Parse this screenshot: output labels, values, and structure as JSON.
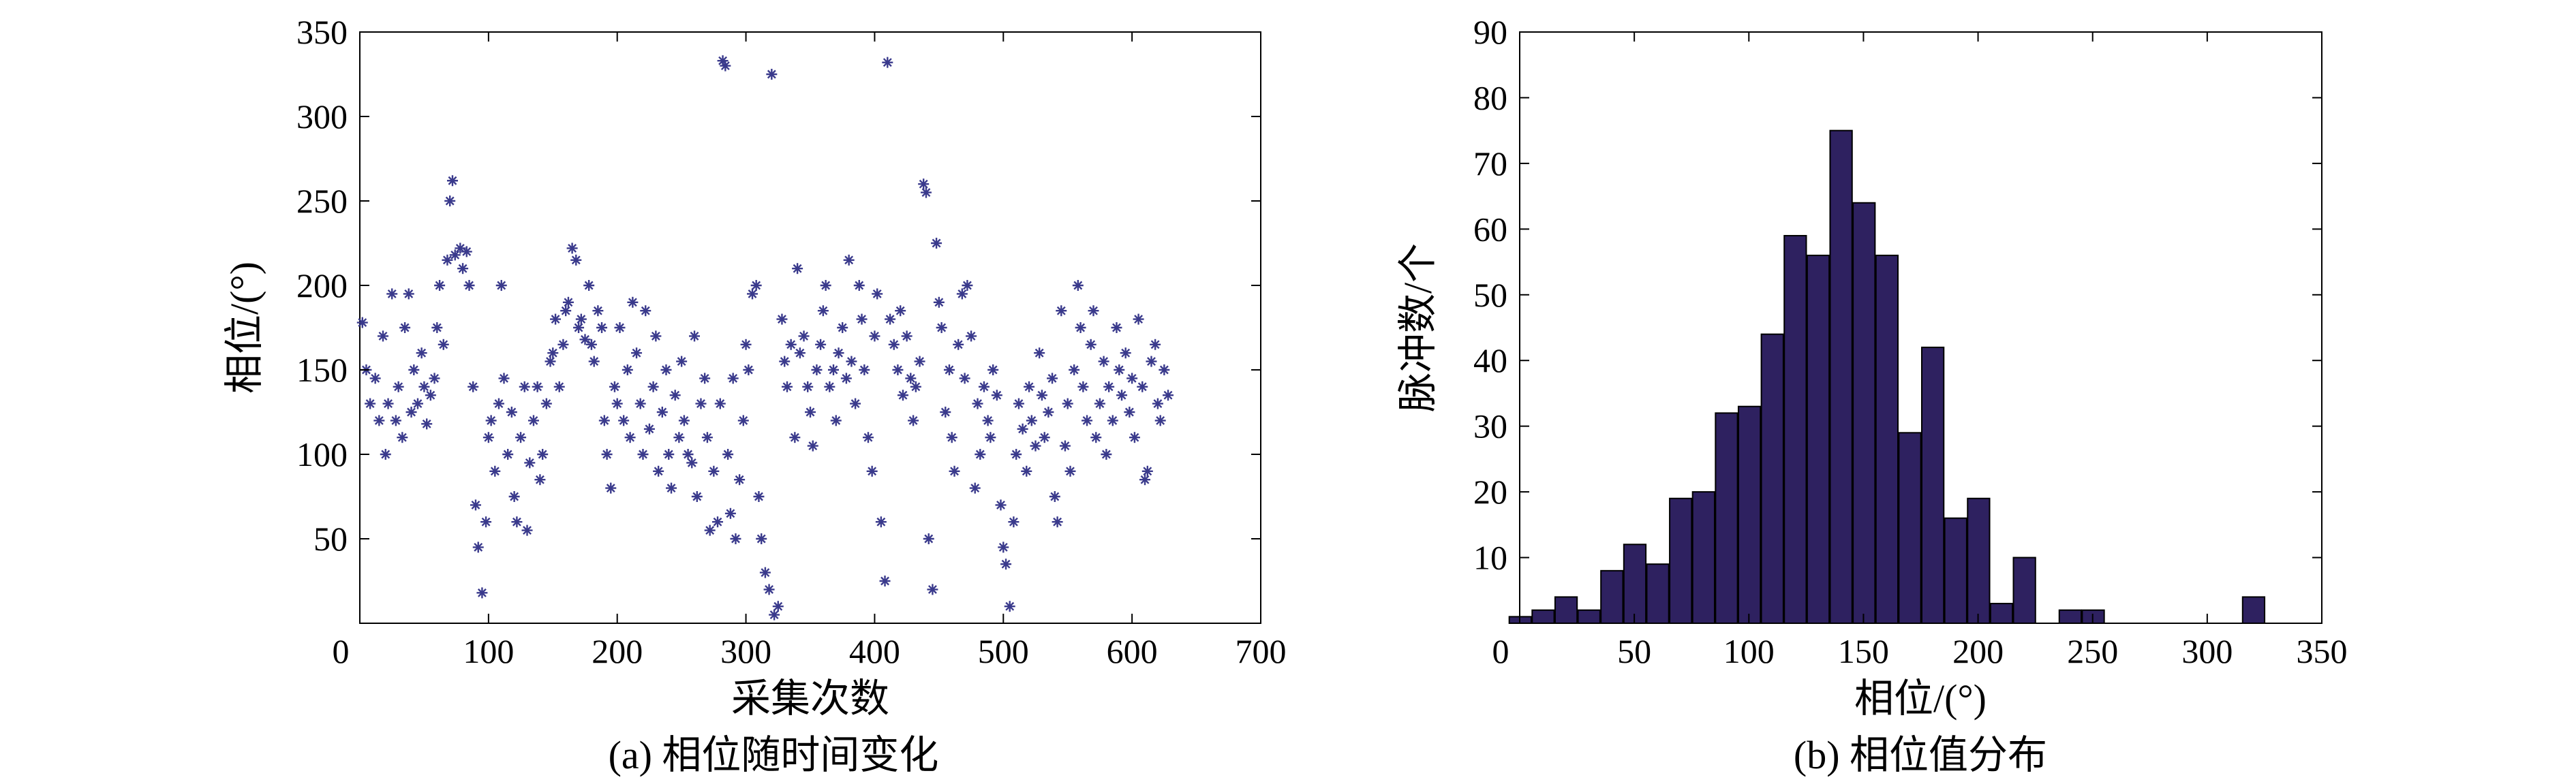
{
  "chart_data": [
    {
      "type": "scatter",
      "title": "",
      "xlabel": "采集次数",
      "ylabel": "相位/(°)",
      "caption": "(a) 相位随时间变化",
      "xlim": [
        0,
        700
      ],
      "ylim": [
        0,
        350
      ],
      "xticks": [
        "0",
        "100",
        "200",
        "300",
        "400",
        "500",
        "600",
        "700"
      ],
      "yticks": [
        "50",
        "100",
        "150",
        "200",
        "250",
        "300",
        "350"
      ],
      "marker": "asterisk",
      "color": "#3a3a8c",
      "points": [
        [
          2,
          178
        ],
        [
          5,
          150
        ],
        [
          8,
          130
        ],
        [
          12,
          145
        ],
        [
          15,
          120
        ],
        [
          18,
          170
        ],
        [
          20,
          100
        ],
        [
          22,
          130
        ],
        [
          25,
          195
        ],
        [
          28,
          120
        ],
        [
          30,
          140
        ],
        [
          33,
          110
        ],
        [
          35,
          175
        ],
        [
          38,
          195
        ],
        [
          40,
          125
        ],
        [
          42,
          150
        ],
        [
          45,
          130
        ],
        [
          48,
          160
        ],
        [
          50,
          140
        ],
        [
          52,
          118
        ],
        [
          55,
          135
        ],
        [
          58,
          145
        ],
        [
          60,
          175
        ],
        [
          62,
          200
        ],
        [
          65,
          165
        ],
        [
          68,
          215
        ],
        [
          70,
          250
        ],
        [
          72,
          262
        ],
        [
          74,
          218
        ],
        [
          78,
          222
        ],
        [
          80,
          210
        ],
        [
          83,
          220
        ],
        [
          85,
          200
        ],
        [
          88,
          140
        ],
        [
          90,
          70
        ],
        [
          92,
          45
        ],
        [
          95,
          18
        ],
        [
          98,
          60
        ],
        [
          100,
          110
        ],
        [
          102,
          120
        ],
        [
          105,
          90
        ],
        [
          108,
          130
        ],
        [
          110,
          200
        ],
        [
          112,
          145
        ],
        [
          115,
          100
        ],
        [
          118,
          125
        ],
        [
          120,
          75
        ],
        [
          122,
          60
        ],
        [
          125,
          110
        ],
        [
          128,
          140
        ],
        [
          130,
          55
        ],
        [
          132,
          95
        ],
        [
          135,
          120
        ],
        [
          138,
          140
        ],
        [
          140,
          85
        ],
        [
          142,
          100
        ],
        [
          145,
          130
        ],
        [
          148,
          155
        ],
        [
          150,
          160
        ],
        [
          152,
          180
        ],
        [
          155,
          140
        ],
        [
          158,
          165
        ],
        [
          160,
          185
        ],
        [
          162,
          190
        ],
        [
          165,
          222
        ],
        [
          168,
          215
        ],
        [
          170,
          175
        ],
        [
          172,
          180
        ],
        [
          175,
          168
        ],
        [
          178,
          200
        ],
        [
          180,
          165
        ],
        [
          182,
          155
        ],
        [
          185,
          185
        ],
        [
          188,
          175
        ],
        [
          190,
          120
        ],
        [
          192,
          100
        ],
        [
          195,
          80
        ],
        [
          198,
          140
        ],
        [
          200,
          130
        ],
        [
          202,
          175
        ],
        [
          205,
          120
        ],
        [
          208,
          150
        ],
        [
          210,
          110
        ],
        [
          212,
          190
        ],
        [
          215,
          160
        ],
        [
          218,
          130
        ],
        [
          220,
          100
        ],
        [
          222,
          185
        ],
        [
          225,
          115
        ],
        [
          228,
          140
        ],
        [
          230,
          170
        ],
        [
          232,
          90
        ],
        [
          235,
          125
        ],
        [
          238,
          150
        ],
        [
          240,
          100
        ],
        [
          242,
          80
        ],
        [
          245,
          135
        ],
        [
          248,
          110
        ],
        [
          250,
          155
        ],
        [
          252,
          120
        ],
        [
          255,
          100
        ],
        [
          258,
          95
        ],
        [
          260,
          170
        ],
        [
          262,
          75
        ],
        [
          265,
          130
        ],
        [
          268,
          145
        ],
        [
          270,
          110
        ],
        [
          272,
          55
        ],
        [
          275,
          90
        ],
        [
          278,
          60
        ],
        [
          280,
          130
        ],
        [
          282,
          333
        ],
        [
          284,
          330
        ],
        [
          286,
          100
        ],
        [
          288,
          65
        ],
        [
          290,
          145
        ],
        [
          292,
          50
        ],
        [
          295,
          85
        ],
        [
          298,
          120
        ],
        [
          300,
          165
        ],
        [
          302,
          150
        ],
        [
          305,
          195
        ],
        [
          308,
          200
        ],
        [
          310,
          75
        ],
        [
          312,
          50
        ],
        [
          315,
          30
        ],
        [
          318,
          20
        ],
        [
          320,
          325
        ],
        [
          322,
          5
        ],
        [
          325,
          10
        ],
        [
          328,
          180
        ],
        [
          330,
          155
        ],
        [
          332,
          140
        ],
        [
          335,
          165
        ],
        [
          338,
          110
        ],
        [
          340,
          210
        ],
        [
          342,
          160
        ],
        [
          345,
          170
        ],
        [
          348,
          140
        ],
        [
          350,
          125
        ],
        [
          352,
          105
        ],
        [
          355,
          150
        ],
        [
          358,
          165
        ],
        [
          360,
          185
        ],
        [
          362,
          200
        ],
        [
          365,
          140
        ],
        [
          368,
          150
        ],
        [
          370,
          120
        ],
        [
          372,
          160
        ],
        [
          375,
          175
        ],
        [
          378,
          145
        ],
        [
          380,
          215
        ],
        [
          382,
          155
        ],
        [
          385,
          130
        ],
        [
          388,
          200
        ],
        [
          390,
          180
        ],
        [
          392,
          150
        ],
        [
          395,
          110
        ],
        [
          398,
          90
        ],
        [
          400,
          170
        ],
        [
          402,
          195
        ],
        [
          405,
          60
        ],
        [
          408,
          25
        ],
        [
          410,
          332
        ],
        [
          412,
          180
        ],
        [
          415,
          165
        ],
        [
          418,
          150
        ],
        [
          420,
          185
        ],
        [
          422,
          135
        ],
        [
          425,
          170
        ],
        [
          428,
          145
        ],
        [
          430,
          120
        ],
        [
          432,
          140
        ],
        [
          435,
          155
        ],
        [
          438,
          260
        ],
        [
          440,
          255
        ],
        [
          442,
          50
        ],
        [
          445,
          20
        ],
        [
          448,
          225
        ],
        [
          450,
          190
        ],
        [
          452,
          175
        ],
        [
          455,
          125
        ],
        [
          458,
          150
        ],
        [
          460,
          110
        ],
        [
          462,
          90
        ],
        [
          465,
          165
        ],
        [
          468,
          195
        ],
        [
          470,
          145
        ],
        [
          472,
          200
        ],
        [
          475,
          170
        ],
        [
          478,
          80
        ],
        [
          480,
          130
        ],
        [
          482,
          100
        ],
        [
          485,
          140
        ],
        [
          488,
          120
        ],
        [
          490,
          110
        ],
        [
          492,
          150
        ],
        [
          495,
          135
        ],
        [
          498,
          70
        ],
        [
          500,
          45
        ],
        [
          502,
          35
        ],
        [
          505,
          10
        ],
        [
          508,
          60
        ],
        [
          510,
          100
        ],
        [
          512,
          130
        ],
        [
          515,
          115
        ],
        [
          518,
          90
        ],
        [
          520,
          140
        ],
        [
          522,
          120
        ],
        [
          525,
          105
        ],
        [
          528,
          160
        ],
        [
          530,
          135
        ],
        [
          532,
          110
        ],
        [
          535,
          125
        ],
        [
          538,
          145
        ],
        [
          540,
          75
        ],
        [
          542,
          60
        ],
        [
          545,
          185
        ],
        [
          548,
          105
        ],
        [
          550,
          130
        ],
        [
          552,
          90
        ],
        [
          555,
          150
        ],
        [
          558,
          200
        ],
        [
          560,
          175
        ],
        [
          562,
          140
        ],
        [
          565,
          120
        ],
        [
          568,
          165
        ],
        [
          570,
          185
        ],
        [
          572,
          110
        ],
        [
          575,
          130
        ],
        [
          578,
          155
        ],
        [
          580,
          100
        ],
        [
          582,
          140
        ],
        [
          585,
          120
        ],
        [
          588,
          175
        ],
        [
          590,
          150
        ],
        [
          592,
          135
        ],
        [
          595,
          160
        ],
        [
          598,
          125
        ],
        [
          600,
          145
        ],
        [
          602,
          110
        ],
        [
          605,
          180
        ],
        [
          608,
          140
        ],
        [
          610,
          85
        ],
        [
          612,
          90
        ],
        [
          615,
          155
        ],
        [
          618,
          165
        ],
        [
          620,
          130
        ],
        [
          622,
          120
        ],
        [
          625,
          150
        ],
        [
          628,
          135
        ]
      ]
    },
    {
      "type": "bar",
      "title": "",
      "xlabel": "相位/(°)",
      "ylabel": "脉冲数/个",
      "caption": "(b) 相位值分布",
      "xlim": [
        0,
        350
      ],
      "ylim": [
        0,
        90
      ],
      "xticks": [
        "0",
        "50",
        "100",
        "150",
        "200",
        "250",
        "300",
        "350"
      ],
      "yticks": [
        "10",
        "20",
        "30",
        "40",
        "50",
        "60",
        "70",
        "80",
        "90"
      ],
      "color": "#2e2160",
      "bin_width": 10,
      "bin_starts": [
        0,
        10,
        20,
        30,
        40,
        50,
        60,
        70,
        80,
        90,
        100,
        110,
        120,
        130,
        140,
        150,
        160,
        170,
        180,
        190,
        200,
        210,
        220,
        230,
        240,
        250,
        260,
        270,
        280,
        290,
        300,
        310,
        320,
        330
      ],
      "values": [
        1,
        2,
        4,
        2,
        8,
        12,
        9,
        19,
        20,
        32,
        33,
        44,
        59,
        56,
        75,
        64,
        56,
        29,
        42,
        16,
        19,
        3,
        10,
        0,
        2,
        2,
        0,
        0,
        0,
        0,
        0,
        0,
        4,
        0
      ]
    }
  ]
}
